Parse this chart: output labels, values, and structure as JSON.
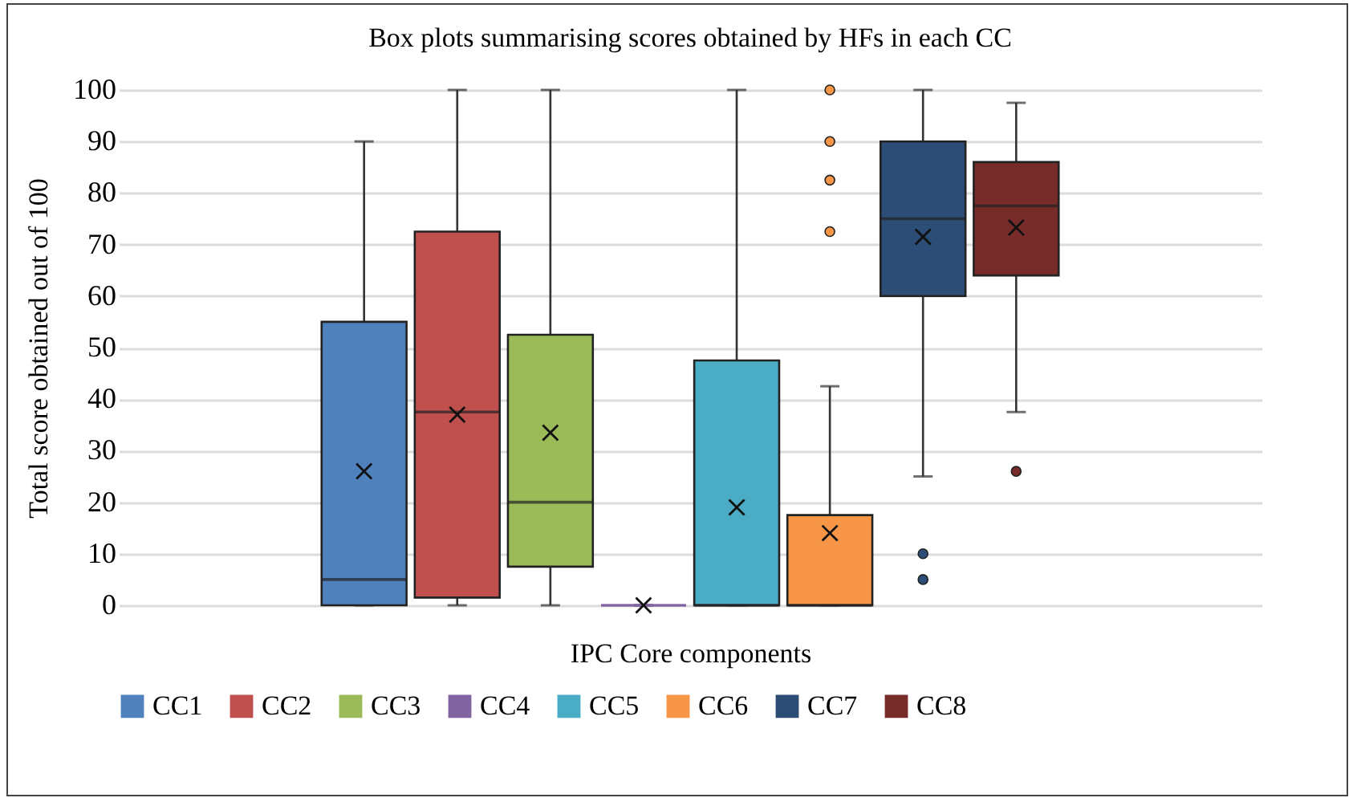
{
  "chart_data": {
    "type": "box",
    "title": "Box plots summarising scores obtained by HFs in each CC",
    "xlabel": "IPC Core components",
    "ylabel": "Total score obtained out of 100",
    "categories": [
      null
    ],
    "series": [
      {
        "name": "CC1",
        "color": "#4f81bd",
        "boxes": [
          {
            "low": 0,
            "q1": 0,
            "median": 5,
            "q3": 55,
            "high": 90,
            "mean": 26
          }
        ]
      },
      {
        "name": "CC2",
        "color": "#c0504d",
        "boxes": [
          {
            "low": 0,
            "q1": 1.5,
            "median": 37.5,
            "q3": 72.5,
            "high": 100,
            "mean": 37
          }
        ]
      },
      {
        "name": "CC3",
        "color": "#9bbb59",
        "boxes": [
          {
            "low": 0,
            "q1": 7.5,
            "median": 20,
            "q3": 52.5,
            "high": 100,
            "mean": 33.5
          }
        ]
      },
      {
        "name": "CC4",
        "color": "#8064a2",
        "boxes": [
          {
            "low": 0,
            "q1": 0,
            "median": 0,
            "q3": 0,
            "high": 0,
            "mean": 0
          }
        ]
      },
      {
        "name": "CC5",
        "color": "#4bacc6",
        "boxes": [
          {
            "low": 0,
            "q1": 0,
            "median": 0,
            "q3": 47.5,
            "high": 100,
            "mean": 19
          }
        ]
      },
      {
        "name": "CC6",
        "color": "#f79646",
        "boxes": [
          {
            "low": 0,
            "q1": 0,
            "median": 0,
            "q3": 17.5,
            "high": 42.5,
            "mean": 14,
            "outliers": [
              72.5,
              82.5,
              90,
              100
            ]
          }
        ]
      },
      {
        "name": "CC7",
        "color": "#2c4d75",
        "boxes": [
          {
            "low": 25,
            "q1": 60,
            "median": 75,
            "q3": 90,
            "high": 100,
            "mean": 71.5,
            "outliers": [
              5,
              10
            ]
          }
        ]
      },
      {
        "name": "CC8",
        "color": "#772c2a",
        "boxes": [
          {
            "low": 37.5,
            "q1": 64,
            "median": 77.5,
            "q3": 86,
            "high": 97.5,
            "mean": 73.3,
            "outliers": [
              26
            ]
          }
        ]
      }
    ],
    "ylim": [
      0,
      100
    ],
    "yticks": [
      0,
      10,
      20,
      30,
      40,
      50,
      60,
      70,
      80,
      90,
      100
    ],
    "grid": "y",
    "legend": "bottom",
    "tick_labels": "y"
  }
}
